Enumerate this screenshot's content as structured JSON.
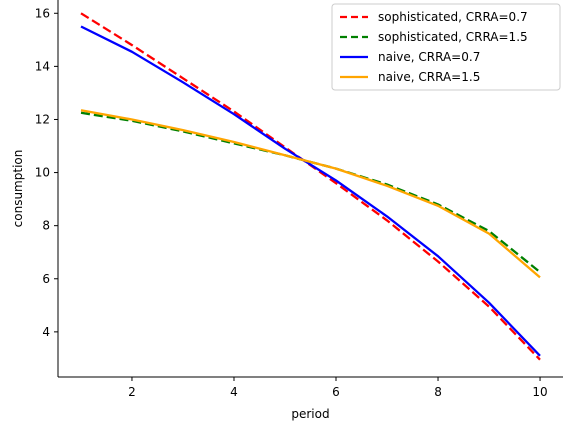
{
  "chart_data": {
    "type": "line",
    "title": "",
    "xlabel": "period",
    "ylabel": "consumption",
    "xlim": [
      0.55,
      10.45
    ],
    "ylim": [
      2.3,
      16.5
    ],
    "xticks": [
      2,
      4,
      6,
      8,
      10
    ],
    "yticks": [
      4,
      6,
      8,
      10,
      12,
      14,
      16
    ],
    "grid": false,
    "legend_position": "top-right",
    "x": [
      1,
      2,
      3,
      4,
      5,
      6,
      7,
      8,
      9,
      10
    ],
    "series": [
      {
        "name": "sophisticated, CRRA=0.7",
        "color": "#ff0000",
        "style": "dashed",
        "values": [
          16.0,
          14.8,
          13.55,
          12.3,
          10.95,
          9.6,
          8.2,
          6.65,
          4.95,
          2.95
        ]
      },
      {
        "name": "sophisticated, CRRA=1.5",
        "color": "#008000",
        "style": "dashed",
        "values": [
          12.25,
          11.95,
          11.55,
          11.1,
          10.65,
          10.15,
          9.55,
          8.8,
          7.8,
          6.25
        ]
      },
      {
        "name": "naive, CRRA=0.7",
        "color": "#0000ff",
        "style": "solid",
        "values": [
          15.5,
          14.55,
          13.4,
          12.2,
          10.9,
          9.7,
          8.35,
          6.85,
          5.1,
          3.1
        ]
      },
      {
        "name": "naive, CRRA=1.5",
        "color": "#ffa500",
        "style": "solid",
        "values": [
          12.35,
          12.0,
          11.6,
          11.15,
          10.65,
          10.15,
          9.5,
          8.75,
          7.7,
          6.05
        ]
      }
    ]
  }
}
